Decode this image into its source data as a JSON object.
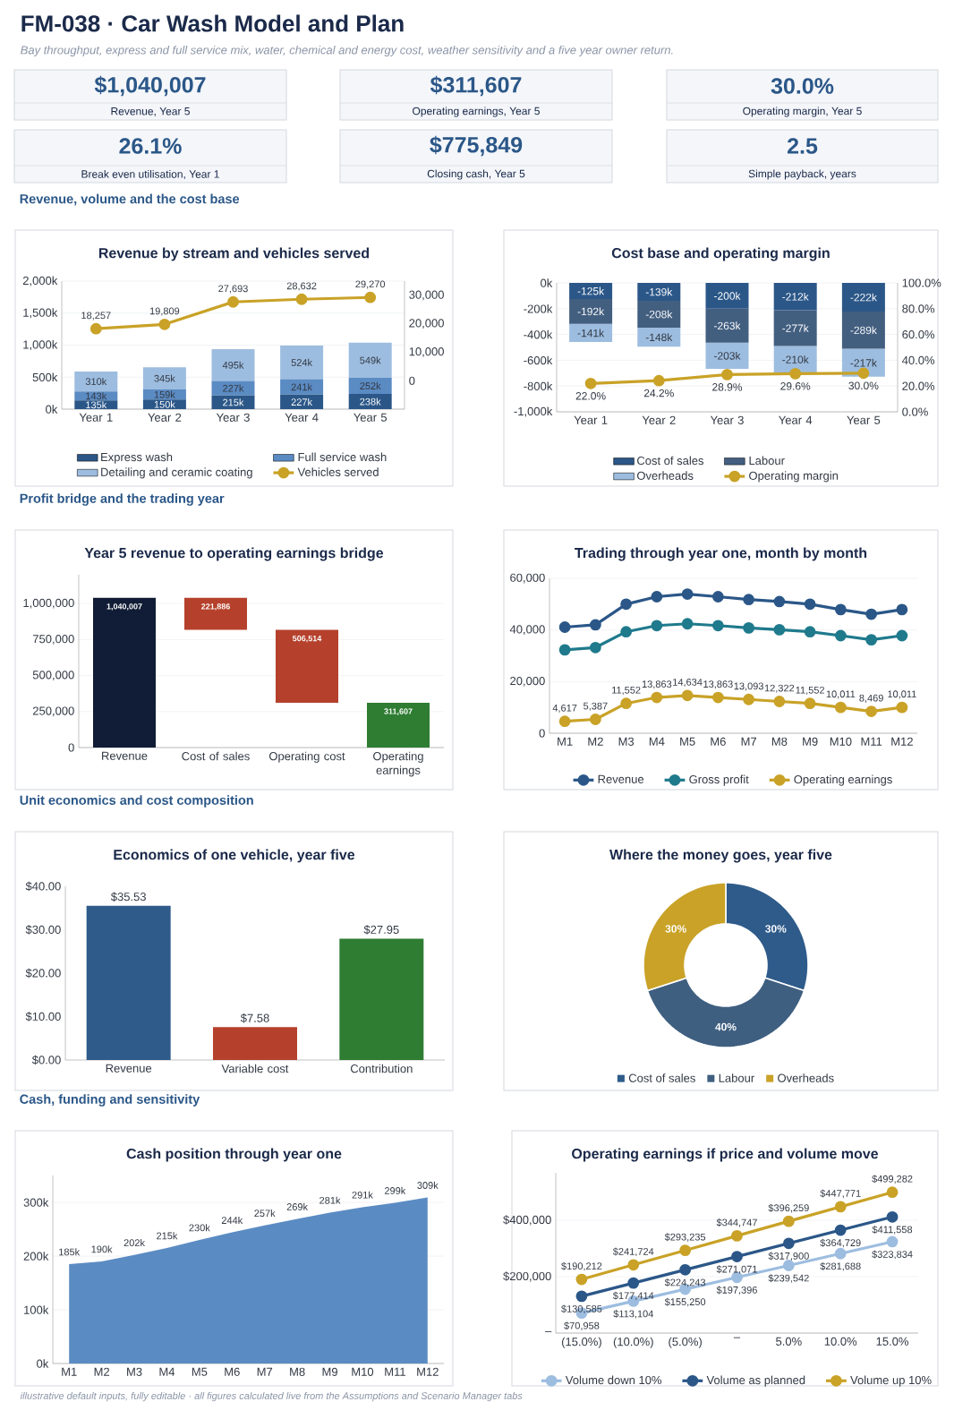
{
  "chart_data": [
    {
      "type": "other",
      "title": "FM-038 · Car Wash Model and Plan",
      "subtitle": "Bay throughput, express and full service mix, water, chemical and energy cost, weather sensitivity and a five year owner return.",
      "annotations": [
        "$1,040,007",
        "Revenue, Year 5",
        "$311,607",
        "Operating earnings, Year 5",
        "30.0%",
        "Operating margin, Year 5",
        "26.1%",
        "Break even utilisation, Year 1",
        "$775,849",
        "Closing cash, Year 5",
        "2.5",
        "Simple payback, years",
        "illustrative default inputs, fully editable · all figures calculated live from the Assumptions and Scenario Manager tabs"
      ]
    },
    {
      "type": "bar",
      "title": "Revenue by stream and vehicles served",
      "annotations": [
        "Revenue, volume and the cost base"
      ],
      "categories": [
        "Year 1",
        "Year 2",
        "Year 3",
        "Year 4",
        "Year 5"
      ],
      "stacked": true,
      "ylim": [
        0,
        2000
      ],
      "yticks": [
        {
          "value": 0,
          "label": "0k"
        },
        {
          "value": 500,
          "label": "500k"
        },
        {
          "value": 1000,
          "label": "1,000k"
        },
        {
          "value": 1500,
          "label": "1,500k"
        },
        {
          "value": 2000,
          "label": "2,000k"
        }
      ],
      "y2lim": [
        -10000,
        35000
      ],
      "y2ticks": [
        0,
        {
          "value": 10000,
          "label": "10,000"
        },
        {
          "value": 20000,
          "label": "20,000"
        },
        {
          "value": 30000,
          "label": "30,000"
        }
      ],
      "grid": "y",
      "legend": "bottom",
      "marker": "circle",
      "series": [
        {
          "name": "Express wash",
          "color": "#2b5788",
          "values": [
            135,
            150,
            215,
            227,
            238
          ],
          "value_labels": [
            "135k",
            "150k",
            "215k",
            "227k",
            "238k"
          ]
        },
        {
          "name": "Full service wash",
          "color": "#5b8bc3",
          "values": [
            143,
            159,
            227,
            241,
            252
          ],
          "value_labels": [
            "143k",
            "159k",
            "227k",
            "241k",
            "252k"
          ]
        },
        {
          "name": "Detailing and ceramic coating",
          "color": "#9dbde0",
          "values": [
            310,
            345,
            495,
            524,
            549
          ],
          "value_labels": [
            "310k",
            "345k",
            "495k",
            "524k",
            "549k"
          ]
        },
        {
          "name": "Vehicles served",
          "type": "line",
          "axis": "y2",
          "color": "#c9a227",
          "values": [
            18257,
            19809,
            27693,
            28632,
            29270
          ],
          "value_labels": [
            "18,257",
            "19,809",
            "27,693",
            "28,632",
            "29,270"
          ]
        }
      ]
    },
    {
      "type": "bar",
      "title": "Cost base and operating margin",
      "categories": [
        "Year 1",
        "Year 2",
        "Year 3",
        "Year 4",
        "Year 5"
      ],
      "stacked": true,
      "ylim": [
        -1000,
        0
      ],
      "yticks": [
        {
          "value": -1000,
          "label": "-1,000k"
        },
        {
          "value": -800,
          "label": "-800k"
        },
        {
          "value": -600,
          "label": "-600k"
        },
        {
          "value": -400,
          "label": "-400k"
        },
        {
          "value": -200,
          "label": "-200k"
        },
        {
          "value": 0,
          "label": "0k"
        }
      ],
      "y2lim": [
        0,
        100
      ],
      "y2ticks": [
        {
          "value": 0,
          "label": "0.0%"
        },
        {
          "value": 20,
          "label": "20.0%"
        },
        {
          "value": 40,
          "label": "40.0%"
        },
        {
          "value": 60,
          "label": "60.0%"
        },
        {
          "value": 80,
          "label": "80.0%"
        },
        {
          "value": 100,
          "label": "100.0%"
        }
      ],
      "grid": "y",
      "legend": "bottom",
      "marker": "circle",
      "series": [
        {
          "name": "Cost of sales",
          "color": "#2b5788",
          "values": [
            -125,
            -139,
            -200,
            -212,
            -222
          ],
          "value_labels": [
            "-125k",
            "-139k",
            "-200k",
            "-212k",
            "-222k"
          ]
        },
        {
          "name": "Labour",
          "color": "#435f80",
          "values": [
            -192,
            -208,
            -263,
            -277,
            -289
          ],
          "value_labels": [
            "-192k",
            "-208k",
            "-263k",
            "-277k",
            "-289k"
          ]
        },
        {
          "name": "Overheads",
          "color": "#9dbde0",
          "values": [
            -141,
            -148,
            -203,
            -210,
            -217
          ],
          "value_labels": [
            "-141k",
            "-148k",
            "-203k",
            "-210k",
            "-217k"
          ]
        },
        {
          "name": "Operating margin",
          "type": "line",
          "axis": "y2",
          "color": "#c9a227",
          "values": [
            22.0,
            24.2,
            28.9,
            29.6,
            30.0
          ],
          "value_labels": [
            "22.0%",
            "24.2%",
            "28.9%",
            "29.6%",
            "30.0%"
          ]
        }
      ]
    },
    {
      "type": "bar",
      "title": "Year 5 revenue to operating earnings bridge",
      "annotations": [
        "Profit bridge and the trading year"
      ],
      "categories": [
        "Revenue",
        "Cost of sales",
        "Operating cost",
        "Operating earnings"
      ],
      "values": [
        1040007,
        221886,
        506514,
        311607
      ],
      "base": [
        0,
        818121,
        311607,
        0
      ],
      "colors": [
        "#111d36",
        "#b5412c",
        "#b5412c",
        "#2e7d32"
      ],
      "value_labels": [
        "1,040,007",
        "221,886",
        "506,514",
        "311,607"
      ],
      "ylim": [
        0,
        1200000
      ],
      "yticks": [
        0,
        {
          "value": 250000,
          "label": "250,000"
        },
        {
          "value": 500000,
          "label": "500,000"
        },
        {
          "value": 750000,
          "label": "750,000"
        },
        {
          "value": 1000000,
          "label": "1,000,000"
        }
      ],
      "grid": "y"
    },
    {
      "type": "line",
      "title": "Trading through year one, month by month",
      "categories": [
        "M1",
        "M2",
        "M3",
        "M4",
        "M5",
        "M6",
        "M7",
        "M8",
        "M9",
        "M10",
        "M11",
        "M12"
      ],
      "ylim": [
        0,
        60000
      ],
      "yticks": [
        0,
        {
          "value": 20000,
          "label": "20,000"
        },
        {
          "value": 40000,
          "label": "40,000"
        },
        {
          "value": 60000,
          "label": "60,000"
        }
      ],
      "grid": "y",
      "legend": "bottom",
      "marker": "circle",
      "series": [
        {
          "name": "Revenue",
          "color": "#2b5788",
          "values": [
            41100,
            42000,
            50000,
            52900,
            53900,
            52900,
            51800,
            51000,
            50000,
            47900,
            46100,
            47900
          ]
        },
        {
          "name": "Gross profit",
          "color": "#1f7a8c",
          "values": [
            32300,
            33200,
            39300,
            41700,
            42400,
            41700,
            40800,
            40100,
            39300,
            37800,
            36200,
            37800
          ]
        },
        {
          "name": "Operating earnings",
          "color": "#c9a227",
          "values": [
            4617,
            5387,
            11552,
            13863,
            14634,
            13863,
            13093,
            12322,
            11552,
            10011,
            8469,
            10011
          ],
          "value_labels": [
            "4,617",
            "5,387",
            "11,552",
            "13,863",
            "14,634",
            "13,863",
            "13,093",
            "12,322",
            "11,552",
            "10,011",
            "8,469",
            "10,011"
          ]
        }
      ]
    },
    {
      "type": "bar",
      "title": "Economics of one vehicle, year five",
      "annotations": [
        "Unit economics and cost composition"
      ],
      "categories": [
        "Revenue",
        "Variable cost",
        "Contribution"
      ],
      "values": [
        35.53,
        7.58,
        27.95
      ],
      "colors": [
        "#2e5b8a",
        "#b5412c",
        "#2e7d32"
      ],
      "value_labels": [
        "$35.53",
        "$7.58",
        "$27.95"
      ],
      "ylim": [
        0,
        40
      ],
      "yticks": [
        {
          "value": 0,
          "label": "$0.00"
        },
        {
          "value": 10,
          "label": "$10.00"
        },
        {
          "value": 20,
          "label": "$20.00"
        },
        {
          "value": 30,
          "label": "$30.00"
        },
        {
          "value": 40,
          "label": "$40.00"
        }
      ]
    },
    {
      "type": "donut",
      "title": "Where the money goes, year five",
      "categories": [
        "Cost of sales",
        "Labour",
        "Overheads"
      ],
      "values": [
        30,
        40,
        30
      ],
      "colors": [
        "#2e5b8a",
        "#3f5f80",
        "#c9a227"
      ],
      "value_labels": [
        "30%",
        "40%",
        "30%"
      ],
      "legend": "bottom"
    },
    {
      "type": "area",
      "title": "Cash position through year one",
      "annotations": [
        "Cash, funding and sensitivity"
      ],
      "categories": [
        "M1",
        "M2",
        "M3",
        "M4",
        "M5",
        "M6",
        "M7",
        "M8",
        "M9",
        "M10",
        "M11",
        "M12"
      ],
      "values": [
        185,
        190,
        202,
        215,
        230,
        244,
        257,
        269,
        281,
        291,
        299,
        309
      ],
      "color": "#5b8bc3",
      "value_labels": [
        "185k",
        "190k",
        "202k",
        "215k",
        "230k",
        "244k",
        "257k",
        "269k",
        "281k",
        "291k",
        "299k",
        "309k"
      ],
      "ylim": [
        0,
        350
      ],
      "yticks": [
        {
          "value": 0,
          "label": "0k"
        },
        {
          "value": 100,
          "label": "100k"
        },
        {
          "value": 200,
          "label": "200k"
        },
        {
          "value": 300,
          "label": "300k"
        }
      ],
      "grid": "y"
    },
    {
      "type": "line",
      "title": "Operating earnings if price and volume move",
      "categories": [
        "(15.0%)",
        "(10.0%)",
        "(5.0%)",
        "–",
        "5.0%",
        "10.0%",
        "15.0%"
      ],
      "ylim": [
        0,
        568000
      ],
      "yticks": [
        {
          "value": 0,
          "label": "–"
        },
        {
          "value": 200000,
          "label": "$200,000"
        },
        {
          "value": 400000,
          "label": "$400,000"
        }
      ],
      "grid": "y",
      "legend": "bottom",
      "marker": "circle",
      "series": [
        {
          "name": "Volume down 10%",
          "color": "#9dbde0",
          "values": [
            70958,
            113104,
            155250,
            197396,
            239542,
            281688,
            323834
          ],
          "value_labels": [
            "$70,958",
            "$113,104",
            "$155,250",
            "$197,396",
            "$239,542",
            "$281,688",
            "$323,834"
          ]
        },
        {
          "name": "Volume as planned",
          "color": "#2b5788",
          "values": [
            130585,
            177414,
            224243,
            271071,
            317900,
            364729,
            411558
          ],
          "value_labels": [
            "$130,585",
            "$177,414",
            "$224,243",
            "$271,071",
            "$317,900",
            "$364,729",
            "$411,558"
          ]
        },
        {
          "name": "Volume up 10%",
          "color": "#c9a227",
          "values": [
            190212,
            241724,
            293235,
            344747,
            396259,
            447771,
            499282
          ],
          "value_labels": [
            "$190,212",
            "$241,724",
            "$293,235",
            "$344,747",
            "$396,259",
            "$447,771",
            "$499,282"
          ]
        }
      ]
    }
  ]
}
